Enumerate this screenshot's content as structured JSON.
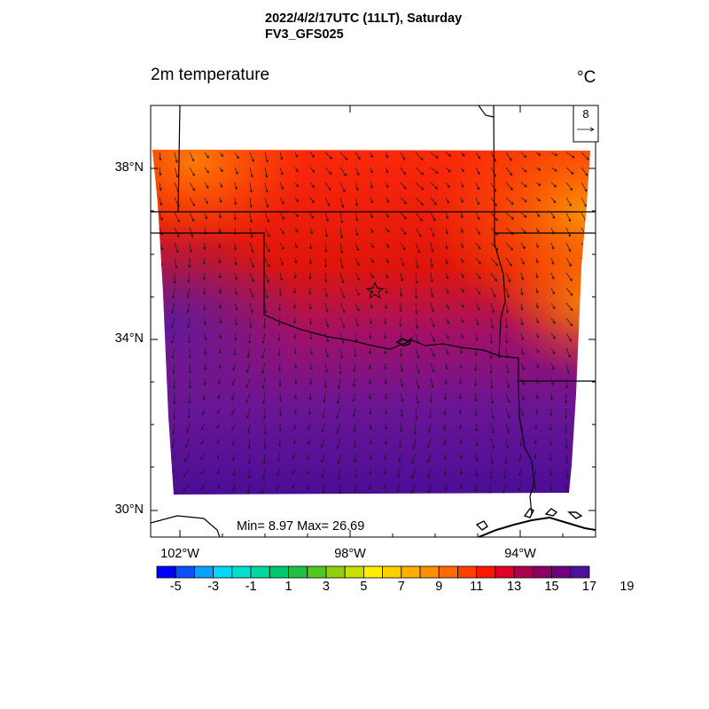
{
  "header": {
    "datetime": "2022/4/2/17UTC (11LT), Saturday",
    "model": "FV3_GFS025"
  },
  "map": {
    "variable": "2m temperature",
    "unit": "°C",
    "lat_labels": [
      "38°N",
      "34°N",
      "30°N"
    ],
    "lon_labels": [
      "102°W",
      "98°W",
      "94°W"
    ],
    "stats": "Min= 8.97 Max= 26.69",
    "vector_reference": "8",
    "marker": "star-icon",
    "domain_fill_color": "#6a1a9a",
    "colors": {
      "cold": "#4b0d96",
      "cool": "#8a1a8a",
      "mid": "#e0150a",
      "warm": "#ff3a0a",
      "hot": "#ff8c00"
    }
  },
  "colorbar": {
    "colors": [
      "#0000ff",
      "#0a50ff",
      "#0aa0ff",
      "#00d8ff",
      "#00e0d0",
      "#00d8a0",
      "#00c870",
      "#20c040",
      "#50c820",
      "#90d010",
      "#c8e000",
      "#ffee00",
      "#ffd000",
      "#ffb000",
      "#ff9000",
      "#ff6a00",
      "#ff4000",
      "#ff1800",
      "#e0002a",
      "#b00050",
      "#8a0060",
      "#700080",
      "#50109a"
    ],
    "labels": [
      "-5",
      "-3",
      "-1",
      "1",
      "3",
      "5",
      "7",
      "9",
      "11",
      "13",
      "15",
      "17",
      "19"
    ]
  }
}
